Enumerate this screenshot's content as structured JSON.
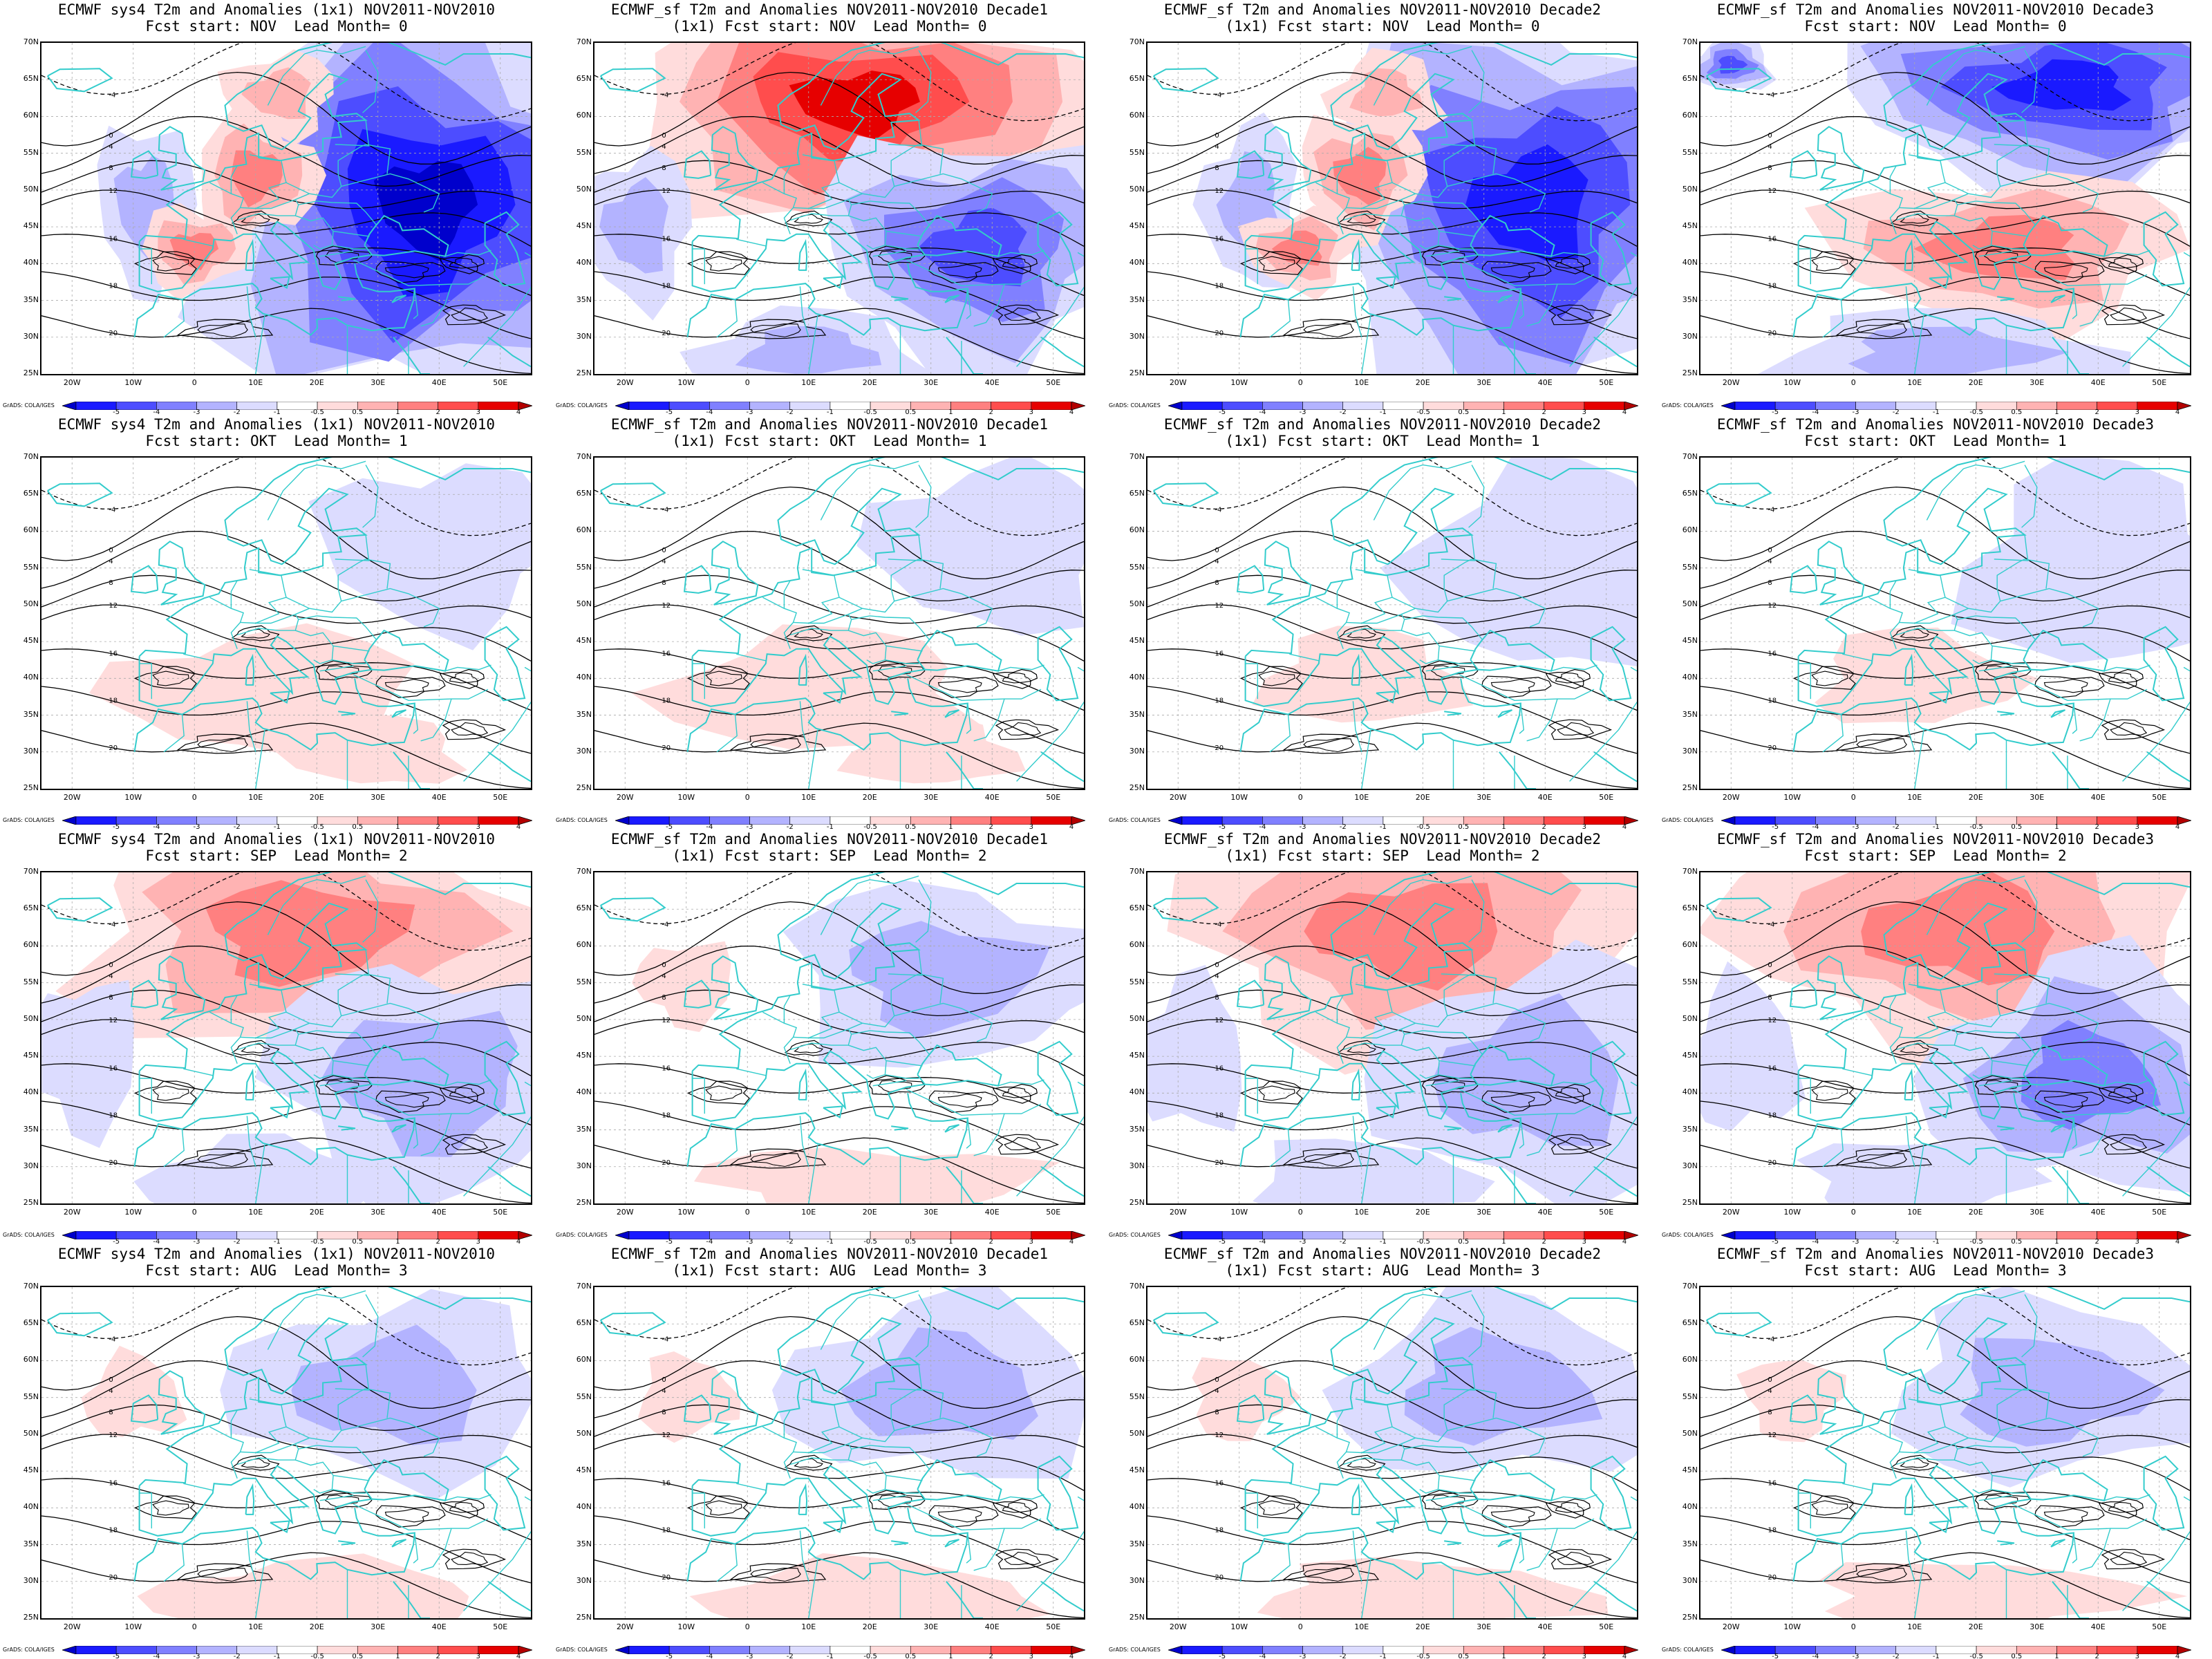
{
  "figure": {
    "lat_labels": [
      "70N",
      "65N",
      "60N",
      "55N",
      "50N",
      "45N",
      "40N",
      "35N",
      "30N",
      "25N"
    ],
    "lon_labels": [
      "20W",
      "10W",
      "0",
      "10E",
      "20E",
      "30E",
      "40E",
      "50E"
    ],
    "colorbar_levels": [
      "-5",
      "-4",
      "-3",
      "-2",
      "-1",
      "-0.5",
      "0.5",
      "1",
      "2",
      "3",
      "4",
      "5"
    ],
    "colorbar_colors": [
      "#0000cc",
      "#1a1aff",
      "#4d4dff",
      "#8080ff",
      "#b3b3ff",
      "#dcdcff",
      "#ffffff",
      "#ffdcdc",
      "#ffb3b3",
      "#ff8080",
      "#ff4d4d",
      "#e60000",
      "#b30000"
    ],
    "credit": "GrADS: COLA/IGES",
    "coast_color": "#33cccc"
  },
  "panels": [
    {
      "line1": "ECMWF sys4 T2m and Anomalies (1x1) NOV2011-NOV2010",
      "line2": "Fcst start: NOV  Lead Month= 0",
      "bias": "cold-east",
      "strength": 0.95
    },
    {
      "line1": "ECMWF_sf T2m and Anomalies NOV2011-NOV2010 Decade1",
      "line2": "(1x1) Fcst start: NOV  Lead Month= 0",
      "bias": "warm-north",
      "strength": 1.0
    },
    {
      "line1": "ECMWF_sf T2m and Anomalies NOV2011-NOV2010 Decade2",
      "line2": "(1x1) Fcst start: NOV  Lead Month= 0",
      "bias": "cold-east",
      "strength": 0.9
    },
    {
      "line1": "ECMWF_sf T2m and Anomalies NOV2011-NOV2010 Decade3",
      "line2": "Fcst start: NOV  Lead Month= 0",
      "bias": "cold-north",
      "strength": 0.9
    },
    {
      "line1": "ECMWF sys4 T2m and Anomalies (1x1) NOV2011-NOV2010",
      "line2": "Fcst start: OKT  Lead Month= 1",
      "bias": "weak-mixed",
      "strength": 0.35
    },
    {
      "line1": "ECMWF_sf T2m and Anomalies NOV2011-NOV2010 Decade1",
      "line2": "(1x1) Fcst start: OKT  Lead Month= 1",
      "bias": "weak-mixed",
      "strength": 0.35
    },
    {
      "line1": "ECMWF_sf T2m and Anomalies NOV2011-NOV2010 Decade2",
      "line2": "(1x1) Fcst start: OKT  Lead Month= 1",
      "bias": "weak-cold",
      "strength": 0.4
    },
    {
      "line1": "ECMWF_sf T2m and Anomalies NOV2011-NOV2010 Decade3",
      "line2": "Fcst start: OKT  Lead Month= 1",
      "bias": "weak-cold",
      "strength": 0.4
    },
    {
      "line1": "ECMWF sys4 T2m and Anomalies (1x1) NOV2011-NOV2010",
      "line2": "Fcst start: SEP  Lead Month= 2",
      "bias": "warm-north",
      "strength": 0.5
    },
    {
      "line1": "ECMWF_sf T2m and Anomalies NOV2011-NOV2010 Decade1",
      "line2": "(1x1) Fcst start: SEP  Lead Month= 2",
      "bias": "cold-center",
      "strength": 0.5
    },
    {
      "line1": "ECMWF_sf T2m and Anomalies NOV2011-NOV2010 Decade2",
      "line2": "(1x1) Fcst start: SEP  Lead Month= 2",
      "bias": "warm-north",
      "strength": 0.55
    },
    {
      "line1": "ECMWF_sf T2m and Anomalies NOV2011-NOV2010 Decade3",
      "line2": "Fcst start: SEP  Lead Month= 2",
      "bias": "warm-north",
      "strength": 0.65
    },
    {
      "line1": "ECMWF sys4 T2m and Anomalies (1x1) NOV2011-NOV2010",
      "line2": "Fcst start: AUG  Lead Month= 3",
      "bias": "cold-center",
      "strength": 0.5
    },
    {
      "line1": "ECMWF_sf T2m and Anomalies NOV2011-NOV2010 Decade1",
      "line2": "(1x1) Fcst start: AUG  Lead Month= 3",
      "bias": "cold-center",
      "strength": 0.6
    },
    {
      "line1": "ECMWF_sf T2m and Anomalies NOV2011-NOV2010 Decade2",
      "line2": "(1x1) Fcst start: AUG  Lead Month= 3",
      "bias": "cold-center",
      "strength": 0.5
    },
    {
      "line1": "ECMWF_sf T2m and Anomalies NOV2011-NOV2010 Decade3",
      "line2": "Fcst start: AUG  Lead Month= 3",
      "bias": "cold-center",
      "strength": 0.5
    }
  ]
}
